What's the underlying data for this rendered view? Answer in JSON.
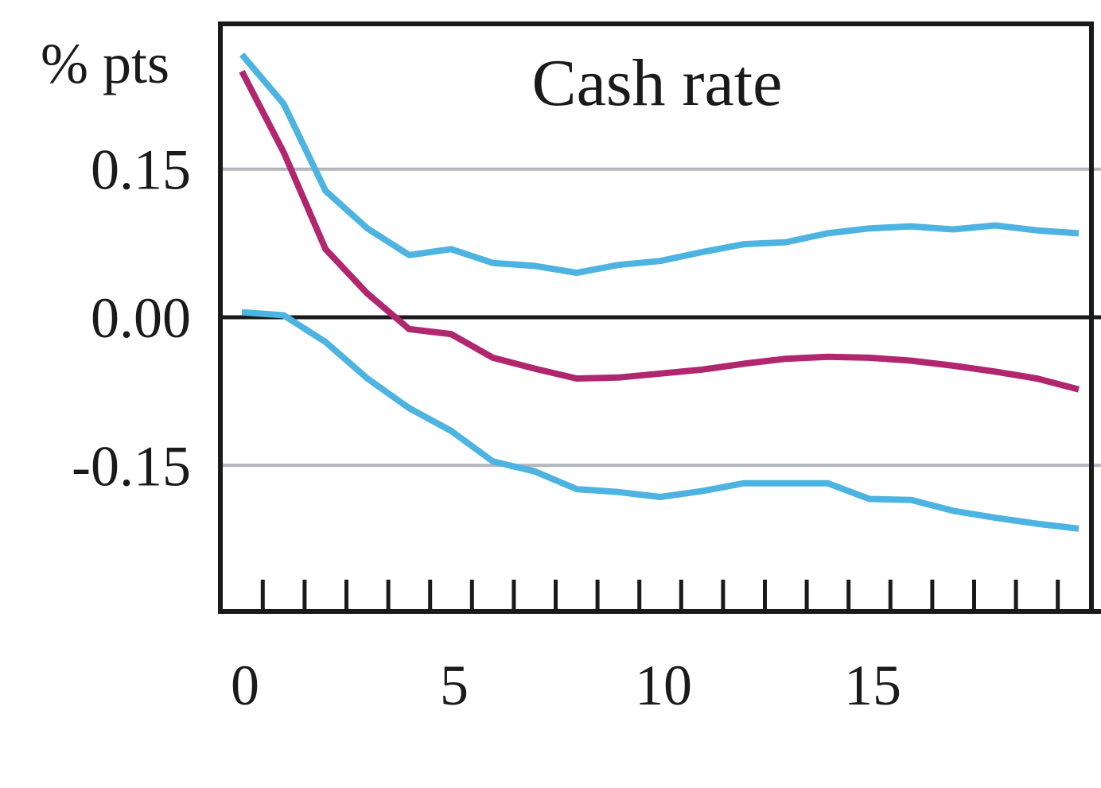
{
  "chart_data": {
    "type": "line",
    "title": "Cash rate",
    "ylabel": "% pts",
    "xlabel": "",
    "x": [
      0,
      1,
      2,
      3,
      4,
      5,
      6,
      7,
      8,
      9,
      10,
      11,
      12,
      13,
      14,
      15,
      16,
      17,
      18,
      19,
      20
    ],
    "xlim": [
      -0.5,
      20.5
    ],
    "ylim": [
      -0.3,
      0.3
    ],
    "x_tick_labels": [
      "0",
      "5",
      "10",
      "15"
    ],
    "x_tick_values": [
      0,
      5,
      10,
      15
    ],
    "y_tick_labels": [
      "0.15",
      "0.00",
      "-0.15"
    ],
    "y_tick_values": [
      0.15,
      0.0,
      -0.15
    ],
    "grid": true,
    "series": [
      {
        "role": "upper band",
        "color": "#4db3e0",
        "values": [
          0.266,
          0.216,
          0.128,
          0.09,
          0.063,
          0.069,
          0.055,
          0.052,
          0.045,
          0.053,
          0.057,
          0.066,
          0.074,
          0.076,
          0.085,
          0.09,
          0.092,
          0.089,
          0.093,
          0.088,
          0.085
        ]
      },
      {
        "role": "central estimate",
        "color": "#b0276f",
        "values": [
          0.249,
          0.167,
          0.069,
          0.024,
          -0.012,
          -0.017,
          -0.041,
          -0.052,
          -0.062,
          -0.061,
          -0.057,
          -0.053,
          -0.047,
          -0.042,
          -0.04,
          -0.041,
          -0.044,
          -0.049,
          -0.055,
          -0.062,
          -0.073
        ]
      },
      {
        "role": "lower band",
        "color": "#4db3e0",
        "values": [
          0.005,
          0.002,
          -0.025,
          -0.062,
          -0.092,
          -0.115,
          -0.146,
          -0.156,
          -0.174,
          -0.177,
          -0.182,
          -0.176,
          -0.168,
          -0.168,
          -0.168,
          -0.184,
          -0.185,
          -0.196,
          -0.203,
          -0.209,
          -0.214
        ]
      }
    ]
  }
}
